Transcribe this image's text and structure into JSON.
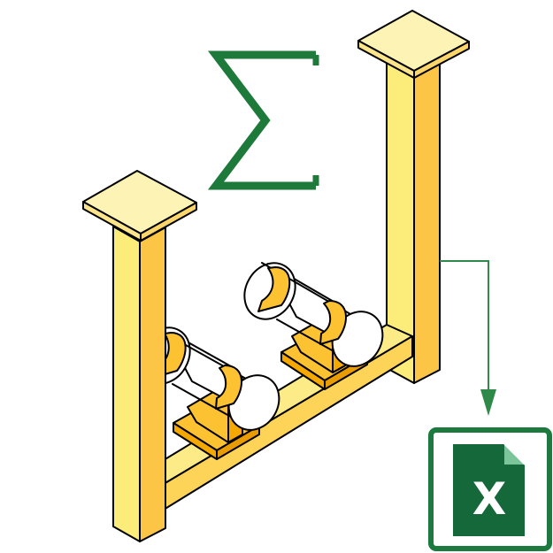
{
  "excel_icon": {
    "letter": "X",
    "name": "excel-file-icon"
  },
  "sum_symbol": {
    "name": "sigma-sum-icon"
  },
  "colors": {
    "pillar_light": "#FCEC7A",
    "pillar_dark": "#FCC545",
    "cap": "#FDF3B5",
    "saddle": "#FDC232",
    "saddle_dark": "#F5A800",
    "pipe": "#FFFFFF",
    "beam_top": "#FDEB88",
    "beam_front": "#FDD457",
    "excel_green": "#1D7A3F",
    "excel_dark": "#14683A",
    "sigma_green": "#1E7A3A",
    "arrow_green": "#2F8A4A"
  }
}
